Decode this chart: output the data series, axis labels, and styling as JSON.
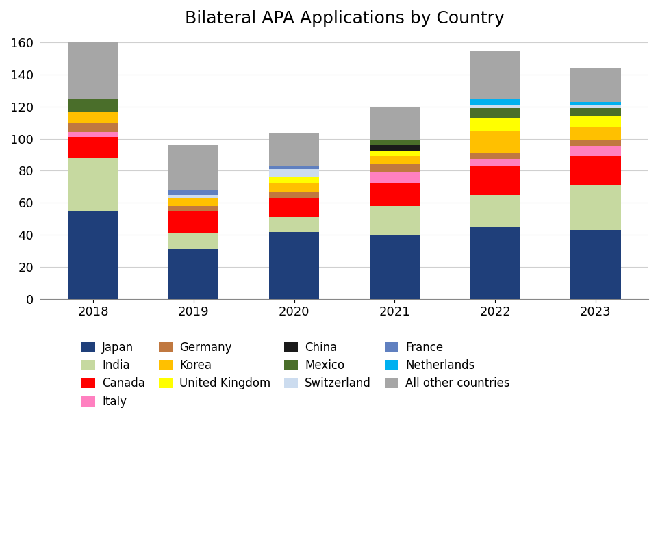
{
  "title": "Bilateral APA Applications by Country",
  "years": [
    "2018",
    "2019",
    "2020",
    "2021",
    "2022",
    "2023"
  ],
  "stack_order": [
    "Japan",
    "India",
    "Canada",
    "Italy",
    "Germany",
    "Korea",
    "United Kingdom",
    "China",
    "Mexico",
    "Switzerland",
    "France",
    "Netherlands",
    "All other countries"
  ],
  "colors": {
    "Japan": "#1f3f7a",
    "India": "#c6d9a0",
    "Canada": "#ff0000",
    "Italy": "#ff80c0",
    "Germany": "#c07840",
    "Korea": "#ffc000",
    "United Kingdom": "#ffff00",
    "China": "#1a1a1a",
    "Mexico": "#4a6e2a",
    "Switzerland": "#ccdcef",
    "France": "#6080c0",
    "Netherlands": "#00b0f0",
    "All other countries": "#a6a6a6"
  },
  "data": {
    "Japan": [
      55,
      31,
      42,
      40,
      45,
      43
    ],
    "India": [
      33,
      10,
      9,
      18,
      20,
      28
    ],
    "Canada": [
      13,
      14,
      12,
      14,
      18,
      18
    ],
    "Italy": [
      3,
      0,
      0,
      7,
      4,
      6
    ],
    "Germany": [
      6,
      3,
      4,
      5,
      4,
      4
    ],
    "Korea": [
      7,
      5,
      5,
      5,
      14,
      8
    ],
    "United Kingdom": [
      0,
      0,
      4,
      3,
      8,
      7
    ],
    "China": [
      0,
      0,
      0,
      4,
      0,
      0
    ],
    "Mexico": [
      8,
      0,
      0,
      3,
      6,
      5
    ],
    "Switzerland": [
      0,
      2,
      5,
      0,
      2,
      2
    ],
    "France": [
      0,
      3,
      2,
      0,
      0,
      0
    ],
    "Netherlands": [
      0,
      0,
      0,
      0,
      4,
      2
    ],
    "All other countries": [
      35,
      28,
      20,
      21,
      30,
      21
    ]
  },
  "ylim": [
    0,
    160
  ],
  "yticks": [
    0,
    20,
    40,
    60,
    80,
    100,
    120,
    140,
    160
  ],
  "legend_order": [
    "Japan",
    "India",
    "Canada",
    "Italy",
    "Germany",
    "Korea",
    "United Kingdom",
    "China",
    "Mexico",
    "Switzerland",
    "France",
    "Netherlands",
    "All other countries"
  ],
  "figsize": [
    9.62,
    7.89
  ],
  "dpi": 100
}
